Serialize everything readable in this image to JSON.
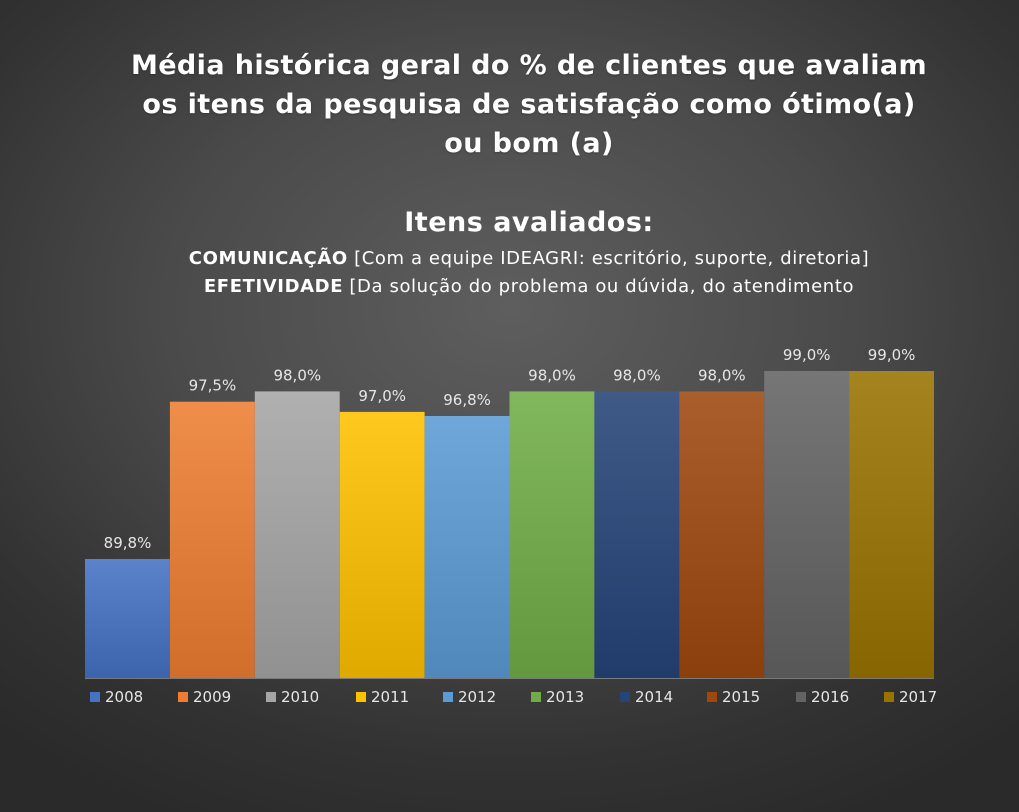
{
  "title_lines": [
    "Média histórica geral do % de clientes que avaliam",
    "os itens da pesquisa de satisfação como ótimo(a)",
    "ou bom (a)"
  ],
  "subtitle": {
    "heading": "Itens avaliados:",
    "line1_bold": "COMUNICAÇÃO",
    "line1_rest": " [Com a equipe IDEAGRI: escritório, suporte, diretoria]",
    "line2_bold": "EFETIVIDADE",
    "line2_rest": " [Da solução do problema ou dúvida, do atendimento"
  },
  "chart_data": {
    "type": "bar",
    "categories": [
      "2008",
      "2009",
      "2010",
      "2011",
      "2012",
      "2013",
      "2014",
      "2015",
      "2016",
      "2017"
    ],
    "values": [
      89.8,
      97.5,
      98.0,
      97.0,
      96.8,
      98.0,
      98.0,
      98.0,
      99.0,
      99.0
    ],
    "data_labels": [
      "89,8%",
      "97,5%",
      "98,0%",
      "97,0%",
      "96,8%",
      "98,0%",
      "98,0%",
      "98,0%",
      "99,0%",
      "99,0%"
    ],
    "colors": [
      "#4472C4",
      "#ED7D31",
      "#A5A5A5",
      "#FFC000",
      "#5B9BD5",
      "#70AD47",
      "#264478",
      "#9E480E",
      "#636363",
      "#997300"
    ],
    "ylim": [
      86,
      100
    ],
    "grid": false,
    "legend_position": "bottom"
  }
}
